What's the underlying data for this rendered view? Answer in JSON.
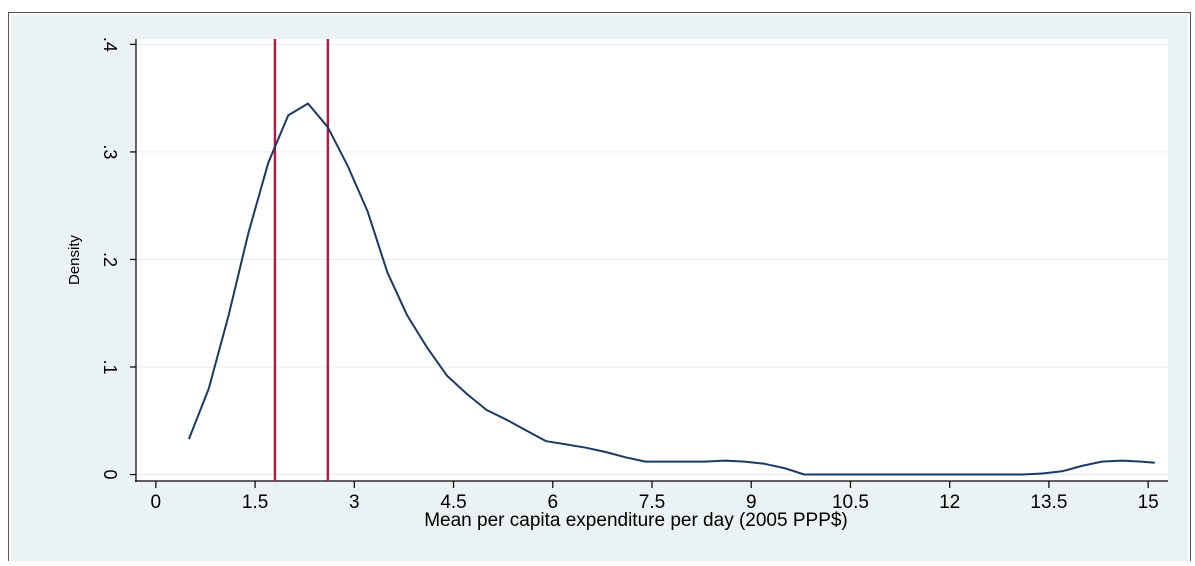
{
  "chart_data": {
    "type": "line",
    "title": "",
    "xlabel": "Mean per capita expenditure per day (2005 PPP$)",
    "ylabel": "Density",
    "xlim": [
      -0.3,
      15.3
    ],
    "ylim": [
      -0.006,
      0.405
    ],
    "x_ticks": [
      0,
      1.5,
      3,
      4.5,
      6,
      7.5,
      9,
      10.5,
      12,
      13.5,
      15
    ],
    "x_tick_labels": [
      "0",
      "1.5",
      "3",
      "4.5",
      "6",
      "7.5",
      "9",
      "10.5",
      "12",
      "13.5",
      "15"
    ],
    "y_ticks": [
      0,
      0.1,
      0.2,
      0.3,
      0.4
    ],
    "y_tick_labels": [
      "0",
      ".1",
      ".2",
      ".3",
      ".4"
    ],
    "grid": true,
    "series": [
      {
        "color": "#1a3a63",
        "x": [
          0.5,
          0.8,
          1.1,
          1.4,
          1.7,
          2.0,
          2.3,
          2.6,
          2.9,
          3.2,
          3.5,
          3.8,
          4.1,
          4.4,
          4.7,
          5.0,
          5.3,
          5.6,
          5.9,
          6.2,
          6.5,
          6.8,
          7.1,
          7.4,
          7.7,
          8.0,
          8.3,
          8.6,
          8.9,
          9.2,
          9.5,
          9.8,
          10.1,
          10.4,
          10.7,
          11.0,
          11.3,
          11.6,
          11.9,
          12.2,
          12.5,
          12.8,
          13.1,
          13.4,
          13.7,
          14.0,
          14.3,
          14.6,
          14.9,
          15.1
        ],
        "y": [
          0.033,
          0.08,
          0.148,
          0.225,
          0.29,
          0.334,
          0.345,
          0.323,
          0.287,
          0.245,
          0.188,
          0.148,
          0.118,
          0.092,
          0.075,
          0.06,
          0.051,
          0.041,
          0.031,
          0.028,
          0.025,
          0.021,
          0.016,
          0.012,
          0.012,
          0.012,
          0.012,
          0.013,
          0.012,
          0.01,
          0.006,
          0.0,
          0.0,
          0.0,
          0.0,
          0.0,
          0.0,
          0.0,
          0.0,
          0.0,
          0.0,
          0.0,
          0.0,
          0.001,
          0.003,
          0.008,
          0.012,
          0.013,
          0.012,
          0.011
        ]
      }
    ],
    "reference_lines": [
      {
        "x": 1.8,
        "color": "#c0143c"
      },
      {
        "x": 2.6,
        "color": "#c0143c"
      }
    ],
    "colors": {
      "background": "#eaf2f3",
      "plot_background": "#ffffff",
      "grid": "#e7edef",
      "line": "#1a3a63",
      "reference": "#c0143c"
    }
  }
}
